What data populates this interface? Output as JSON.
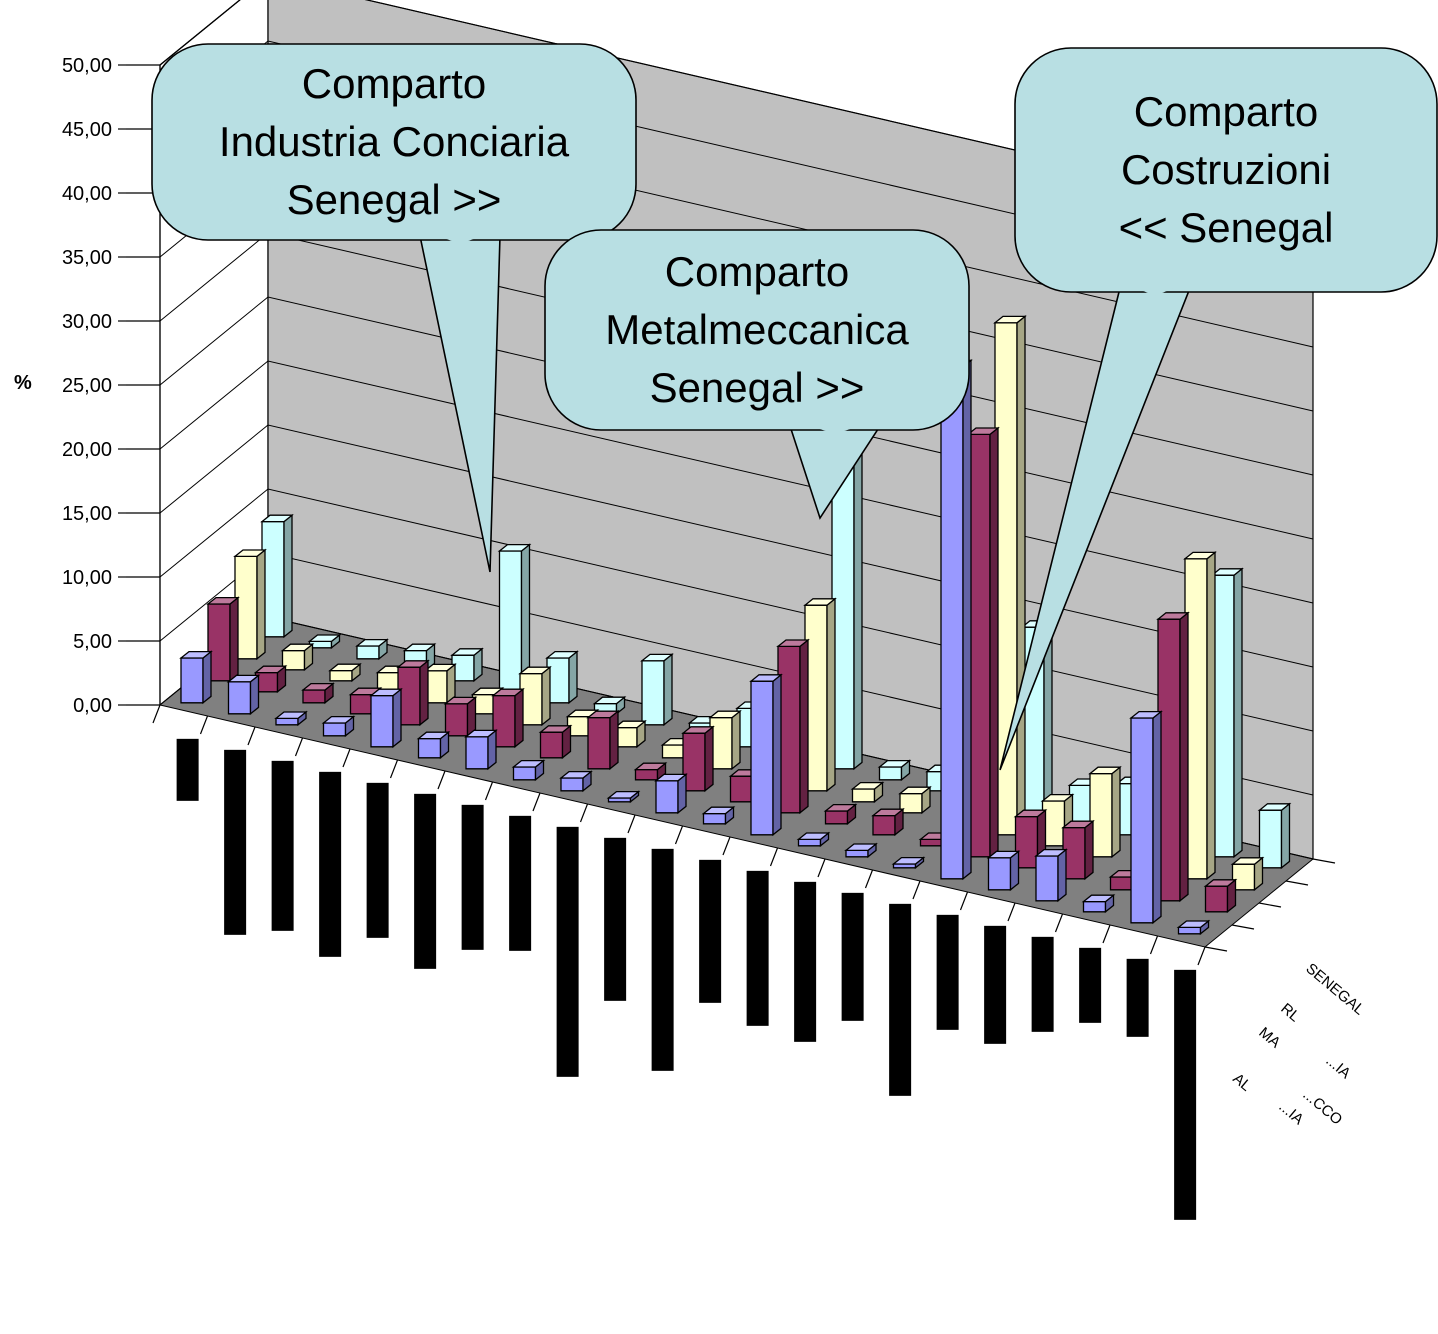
{
  "chart_data": {
    "type": "bar",
    "ylabel": "%",
    "ylim": [
      0,
      50
    ],
    "y_ticks": [
      "0,00",
      "5,00",
      "10,00",
      "15,00",
      "20,00",
      "25,00",
      "30,00",
      "35,00",
      "40,00",
      "45,00",
      "50,00"
    ],
    "grid": true,
    "depth_labels": [
      "AL",
      "MA",
      "RL",
      "SENEGAL",
      "...IA",
      "...CCO",
      "...IA"
    ],
    "series_colors": [
      "#9999ff",
      "#993366",
      "#ffffcc",
      "#ccffff"
    ],
    "series": [
      {
        "values": [
          3.5,
          2.5,
          0.5,
          1.0,
          4.0,
          1.5,
          2.5,
          1.0,
          1.0,
          0.3,
          2.5,
          0.8,
          12.0,
          0.5,
          0.5,
          0.3,
          40.0,
          2.5,
          3.5,
          0.8,
          16.0,
          0.5
        ]
      },
      {
        "values": [
          6.0,
          1.5,
          1.0,
          1.5,
          4.5,
          2.5,
          4.0,
          2.0,
          4.0,
          0.8,
          4.5,
          2.0,
          13.0,
          1.0,
          1.5,
          0.5,
          33.0,
          4.0,
          4.0,
          1.0,
          22.0,
          2.0
        ]
      },
      {
        "values": [
          8.0,
          1.5,
          0.8,
          1.5,
          2.5,
          1.5,
          4.0,
          1.5,
          1.5,
          1.0,
          4.0,
          1.0,
          14.5,
          1.0,
          1.5,
          0.5,
          40.0,
          3.5,
          6.5,
          1.0,
          25.0,
          2.0
        ]
      },
      {
        "values": [
          9.0,
          0.5,
          1.0,
          1.5,
          2.0,
          11.0,
          3.5,
          0.8,
          5.0,
          1.0,
          3.0,
          2.0,
          26.0,
          1.0,
          1.5,
          0.5,
          14.5,
          3.0,
          4.0,
          1.0,
          22.0,
          4.5
        ]
      }
    ],
    "annotations": [
      {
        "lines": [
          "Comparto",
          "Industria Conciaria",
          "Senegal >>"
        ]
      },
      {
        "lines": [
          "Comparto",
          "Metalmeccanica",
          "Senegal >>"
        ]
      },
      {
        "lines": [
          "Comparto",
          "Costruzioni",
          "<< Senegal"
        ]
      }
    ]
  }
}
